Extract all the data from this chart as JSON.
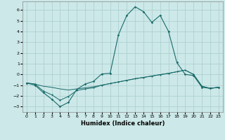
{
  "xlabel": "Humidex (Indice chaleur)",
  "ylabel": "",
  "background_color": "#cce8e8",
  "grid_color": "#aacccc",
  "line_color": "#1a6b6b",
  "xlim": [
    -0.5,
    23.5
  ],
  "ylim": [
    -3.5,
    6.8
  ],
  "yticks": [
    -3,
    -2,
    -1,
    0,
    1,
    2,
    3,
    4,
    5,
    6
  ],
  "xticks": [
    0,
    1,
    2,
    3,
    4,
    5,
    6,
    7,
    8,
    9,
    10,
    11,
    12,
    13,
    14,
    15,
    16,
    17,
    18,
    19,
    20,
    21,
    22,
    23
  ],
  "series1": [
    [
      0,
      -0.8
    ],
    [
      1,
      -1.0
    ],
    [
      2,
      -1.7
    ],
    [
      3,
      -2.3
    ],
    [
      4,
      -3.0
    ],
    [
      5,
      -2.6
    ],
    [
      6,
      -1.4
    ],
    [
      7,
      -0.9
    ],
    [
      8,
      -0.65
    ],
    [
      9,
      0.05
    ],
    [
      10,
      0.1
    ],
    [
      11,
      3.7
    ],
    [
      12,
      5.5
    ],
    [
      13,
      6.3
    ],
    [
      14,
      5.85
    ],
    [
      15,
      4.85
    ],
    [
      16,
      5.5
    ],
    [
      17,
      4.0
    ],
    [
      18,
      1.1
    ],
    [
      19,
      0.0
    ],
    [
      20,
      -0.1
    ],
    [
      21,
      -1.2
    ],
    [
      22,
      -1.3
    ],
    [
      23,
      -1.2
    ]
  ],
  "series2": [
    [
      0,
      -0.8
    ],
    [
      1,
      -0.9
    ],
    [
      2,
      -1.1
    ],
    [
      3,
      -1.2
    ],
    [
      4,
      -1.35
    ],
    [
      5,
      -1.45
    ],
    [
      6,
      -1.35
    ],
    [
      7,
      -1.25
    ],
    [
      8,
      -1.15
    ],
    [
      9,
      -1.0
    ],
    [
      10,
      -0.85
    ],
    [
      11,
      -0.7
    ],
    [
      12,
      -0.55
    ],
    [
      13,
      -0.4
    ],
    [
      14,
      -0.28
    ],
    [
      15,
      -0.15
    ],
    [
      16,
      -0.02
    ],
    [
      17,
      0.1
    ],
    [
      18,
      0.25
    ],
    [
      19,
      0.4
    ],
    [
      20,
      0.0
    ],
    [
      21,
      -1.1
    ],
    [
      22,
      -1.3
    ],
    [
      23,
      -1.2
    ]
  ],
  "series3": [
    [
      0,
      -0.8
    ],
    [
      1,
      -0.9
    ],
    [
      2,
      -1.55
    ],
    [
      3,
      -1.9
    ],
    [
      4,
      -2.4
    ],
    [
      5,
      -2.05
    ],
    [
      6,
      -1.5
    ],
    [
      7,
      -1.35
    ],
    [
      8,
      -1.25
    ],
    [
      9,
      -1.0
    ],
    [
      10,
      -0.85
    ],
    [
      11,
      -0.7
    ],
    [
      12,
      -0.55
    ],
    [
      13,
      -0.4
    ],
    [
      14,
      -0.28
    ],
    [
      15,
      -0.15
    ],
    [
      16,
      -0.02
    ],
    [
      17,
      0.1
    ],
    [
      18,
      0.25
    ],
    [
      19,
      0.4
    ],
    [
      20,
      0.0
    ],
    [
      21,
      -1.1
    ],
    [
      22,
      -1.3
    ],
    [
      23,
      -1.2
    ]
  ]
}
